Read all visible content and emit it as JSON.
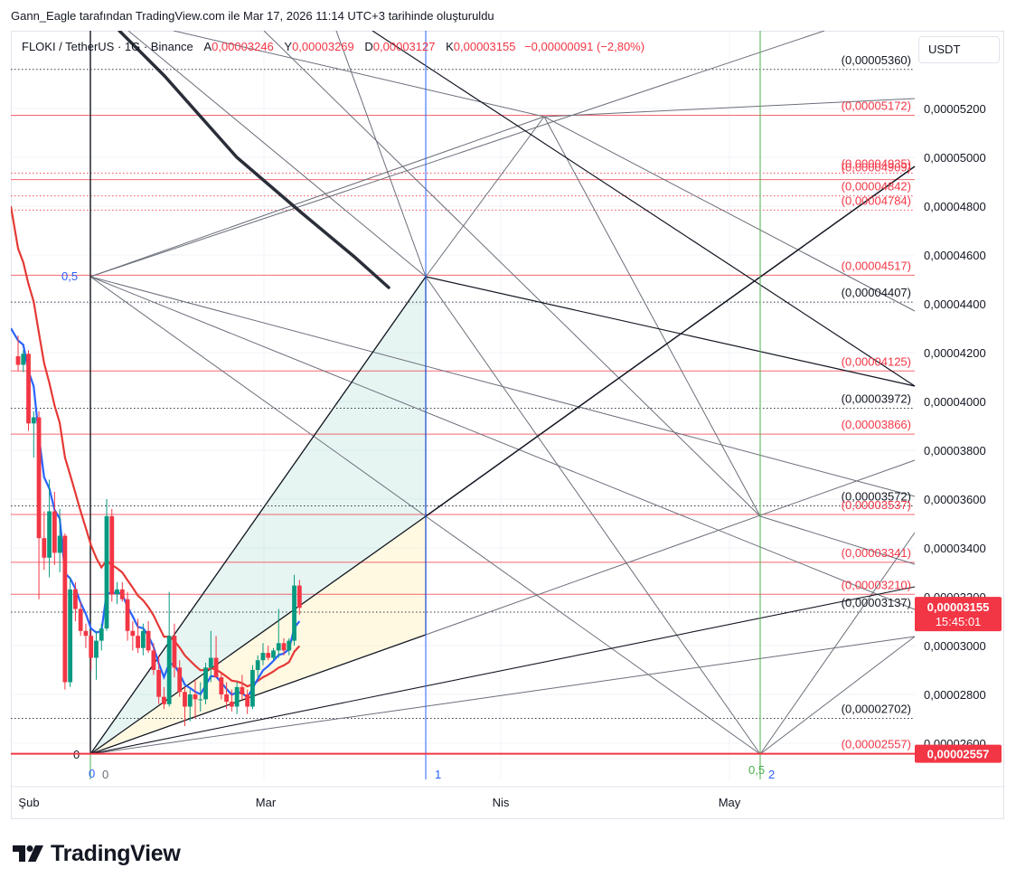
{
  "caption": "Gann_Eagle tarafından TradingView.com ile Mar 17, 2026 11:14 UTC+3 tarihinde oluşturuldu",
  "legend": {
    "symbol": "FLOKI / TetherUS · 1G · Binance",
    "open_label": "A",
    "open": "0,00003246",
    "high_label": "Y",
    "high": "0,00003269",
    "low_label": "D",
    "low": "0,00003127",
    "close_label": "K",
    "close": "0,00003155",
    "change": "−0,00000091 (−2,80%)"
  },
  "currency": "USDT",
  "logo_text": "TradingView",
  "colors": {
    "up": "#089981",
    "down": "#f23645",
    "ema_fast": "#2962ff",
    "ema_slow": "#e53935",
    "level_red": "#f23645",
    "level_black": "#131722",
    "fib_time_blue": "#2962ff",
    "fib_time_green": "#4caf50"
  },
  "chart_data": {
    "type": "candlestick",
    "x_ticks": [
      "Şub",
      "Mar",
      "Nis",
      "May"
    ],
    "y_ticks": [
      "0,00005200",
      "0,00005000",
      "0,00004800",
      "0,00004600",
      "0,00004400",
      "0,00004200",
      "0,00004000",
      "0,00003800",
      "0,00003600",
      "0,00003400",
      "0,00003200",
      "0,00003000",
      "0,00002800",
      "0,00002600"
    ],
    "y_range": [
      2.54e-05,
      5.5e-05
    ],
    "last_price": {
      "value": "0,00003155",
      "countdown": "15:45:01"
    },
    "low_price": {
      "value": "0,00002557"
    },
    "levels": [
      {
        "value": 5.36e-05,
        "label": "(0,00005360)",
        "color": "black",
        "style": "dotted"
      },
      {
        "value": 5.172e-05,
        "label": "(0,00005172)",
        "color": "red",
        "style": "solid"
      },
      {
        "value": 4.935e-05,
        "label": "(0,00004935)",
        "color": "red",
        "style": "dotted"
      },
      {
        "value": 4.909e-05,
        "label": "(0,00004909)",
        "color": "red",
        "style": "solid"
      },
      {
        "value": 4.842e-05,
        "label": "(0,00004842)",
        "color": "red",
        "style": "dotted"
      },
      {
        "value": 4.784e-05,
        "label": "(0,00004784)",
        "color": "red",
        "style": "dotted"
      },
      {
        "value": 4.517e-05,
        "label": "(0,00004517)",
        "color": "red",
        "style": "solid"
      },
      {
        "value": 4.407e-05,
        "label": "(0,00004407)",
        "color": "black",
        "style": "dotted"
      },
      {
        "value": 4.125e-05,
        "label": "(0,00004125)",
        "color": "red",
        "style": "solid"
      },
      {
        "value": 3.972e-05,
        "label": "(0,00003972)",
        "color": "black",
        "style": "dotted"
      },
      {
        "value": 3.866e-05,
        "label": "(0,00003866)",
        "color": "red",
        "style": "solid"
      },
      {
        "value": 3.572e-05,
        "label": "(0,00003572)",
        "color": "black",
        "style": "dotted"
      },
      {
        "value": 3.537e-05,
        "label": "(0,00003537)",
        "color": "red",
        "style": "solid"
      },
      {
        "value": 3.341e-05,
        "label": "(0,00003341)",
        "color": "red",
        "style": "solid"
      },
      {
        "value": 3.21e-05,
        "label": "(0,00003210)",
        "color": "red",
        "style": "solid"
      },
      {
        "value": 3.137e-05,
        "label": "(0,00003137)",
        "color": "black",
        "style": "dotted"
      },
      {
        "value": 2.702e-05,
        "label": "(0,00002702)",
        "color": "black",
        "style": "dotted"
      },
      {
        "value": 2.557e-05,
        "label": "(0,00002557)",
        "color": "red",
        "style": "solid"
      }
    ],
    "fib_time_labels": [
      {
        "text": "0",
        "color": "blue"
      },
      {
        "text": "0",
        "color": "black"
      },
      {
        "text": "1",
        "color": "blue"
      },
      {
        "text": "0,5",
        "color": "green"
      },
      {
        "text": "2",
        "color": "blue"
      }
    ],
    "fib_price_labels": [
      {
        "text": "0,5",
        "color": "blue"
      },
      {
        "text": "0",
        "color": "black"
      }
    ],
    "candles": [
      {
        "o": 4.185e-05,
        "h": 4.27e-05,
        "l": 4.125e-05,
        "c": 4.15e-05
      },
      {
        "o": 4.15e-05,
        "h": 4.21e-05,
        "l": 4.12e-05,
        "c": 4.195e-05
      },
      {
        "o": 4.195e-05,
        "h": 4.21e-05,
        "l": 3.88e-05,
        "c": 3.91e-05
      },
      {
        "o": 3.91e-05,
        "h": 3.96e-05,
        "l": 3.77e-05,
        "c": 3.935e-05
      },
      {
        "o": 3.935e-05,
        "h": 3.96e-05,
        "l": 3.19e-05,
        "c": 3.44e-05
      },
      {
        "o": 3.44e-05,
        "h": 3.55e-05,
        "l": 3.31e-05,
        "c": 3.36e-05
      },
      {
        "o": 3.36e-05,
        "h": 3.68e-05,
        "l": 3.28e-05,
        "c": 3.55e-05
      },
      {
        "o": 3.55e-05,
        "h": 3.63e-05,
        "l": 3.33e-05,
        "c": 3.38e-05
      },
      {
        "o": 3.38e-05,
        "h": 3.56e-05,
        "l": 3.3e-05,
        "c": 3.45e-05
      },
      {
        "o": 3.45e-05,
        "h": 3.46e-05,
        "l": 2.82e-05,
        "c": 2.85e-05
      },
      {
        "o": 2.85e-05,
        "h": 3.28e-05,
        "l": 2.83e-05,
        "c": 3.23e-05
      },
      {
        "o": 3.23e-05,
        "h": 3.26e-05,
        "l": 3.1e-05,
        "c": 3.15e-05
      },
      {
        "o": 3.15e-05,
        "h": 3.18e-05,
        "l": 3.04e-05,
        "c": 3.06e-05
      },
      {
        "o": 3.06e-05,
        "h": 3.09e-05,
        "l": 2.99e-05,
        "c": 3.04e-05
      },
      {
        "o": 3.04e-05,
        "h": 3.06e-05,
        "l": 2.9e-05,
        "c": 2.95e-05
      },
      {
        "o": 2.95e-05,
        "h": 3.06e-05,
        "l": 2.86e-05,
        "c": 3.02e-05
      },
      {
        "o": 3.02e-05,
        "h": 3.09e-05,
        "l": 2.98e-05,
        "c": 3.07e-05
      },
      {
        "o": 3.07e-05,
        "h": 3.6e-05,
        "l": 3.06e-05,
        "c": 3.53e-05
      },
      {
        "o": 3.53e-05,
        "h": 3.56e-05,
        "l": 3.18e-05,
        "c": 3.21e-05
      },
      {
        "o": 3.21e-05,
        "h": 3.26e-05,
        "l": 3.17e-05,
        "c": 3.23e-05
      },
      {
        "o": 3.23e-05,
        "h": 3.26e-05,
        "l": 3.18e-05,
        "c": 3.19e-05
      },
      {
        "o": 3.19e-05,
        "h": 3.22e-05,
        "l": 3.02e-05,
        "c": 3.06e-05
      },
      {
        "o": 3.06e-05,
        "h": 3.1e-05,
        "l": 2.98e-05,
        "c": 3.04e-05
      },
      {
        "o": 3.04e-05,
        "h": 3.11e-05,
        "l": 2.97e-05,
        "c": 2.99e-05
      },
      {
        "o": 2.99e-05,
        "h": 3.09e-05,
        "l": 2.96e-05,
        "c": 3.06e-05
      },
      {
        "o": 3.06e-05,
        "h": 3.1e-05,
        "l": 2.97e-05,
        "c": 2.98e-05
      },
      {
        "o": 2.98e-05,
        "h": 3.01e-05,
        "l": 2.88e-05,
        "c": 2.9e-05
      },
      {
        "o": 2.9e-05,
        "h": 2.96e-05,
        "l": 2.76e-05,
        "c": 2.79e-05
      },
      {
        "o": 2.79e-05,
        "h": 2.83e-05,
        "l": 2.74e-05,
        "c": 2.76e-05
      },
      {
        "o": 2.76e-05,
        "h": 3.22e-05,
        "l": 2.75e-05,
        "c": 3.04e-05
      },
      {
        "o": 3.04e-05,
        "h": 3.09e-05,
        "l": 2.87e-05,
        "c": 2.91e-05
      },
      {
        "o": 2.91e-05,
        "h": 2.94e-05,
        "l": 2.79e-05,
        "c": 2.81e-05
      },
      {
        "o": 2.81e-05,
        "h": 2.83e-05,
        "l": 2.67e-05,
        "c": 2.75e-05
      },
      {
        "o": 2.75e-05,
        "h": 2.82e-05,
        "l": 2.69e-05,
        "c": 2.8e-05
      },
      {
        "o": 2.8e-05,
        "h": 2.86e-05,
        "l": 2.7e-05,
        "c": 2.78e-05
      },
      {
        "o": 2.78e-05,
        "h": 2.85e-05,
        "l": 2.73e-05,
        "c": 2.78e-05
      },
      {
        "o": 2.78e-05,
        "h": 2.93e-05,
        "l": 2.76e-05,
        "c": 2.91e-05
      },
      {
        "o": 2.91e-05,
        "h": 3.06e-05,
        "l": 2.85e-05,
        "c": 2.95e-05
      },
      {
        "o": 2.95e-05,
        "h": 3.04e-05,
        "l": 2.89e-05,
        "c": 2.87e-05
      },
      {
        "o": 2.87e-05,
        "h": 2.89e-05,
        "l": 2.78e-05,
        "c": 2.8e-05
      },
      {
        "o": 2.8e-05,
        "h": 2.85e-05,
        "l": 2.74e-05,
        "c": 2.77e-05
      },
      {
        "o": 2.77e-05,
        "h": 2.82e-05,
        "l": 2.73e-05,
        "c": 2.75e-05
      },
      {
        "o": 2.75e-05,
        "h": 2.85e-05,
        "l": 2.72e-05,
        "c": 2.83e-05
      },
      {
        "o": 2.83e-05,
        "h": 2.88e-05,
        "l": 2.78e-05,
        "c": 2.8e-05
      },
      {
        "o": 2.8e-05,
        "h": 2.82e-05,
        "l": 2.72e-05,
        "c": 2.75e-05
      },
      {
        "o": 2.75e-05,
        "h": 2.92e-05,
        "l": 2.74e-05,
        "c": 2.9e-05
      },
      {
        "o": 2.9e-05,
        "h": 2.96e-05,
        "l": 2.87e-05,
        "c": 2.94e-05
      },
      {
        "o": 2.94e-05,
        "h": 3.01e-05,
        "l": 2.92e-05,
        "c": 2.97e-05
      },
      {
        "o": 2.97e-05,
        "h": 3e-05,
        "l": 2.94e-05,
        "c": 2.95e-05
      },
      {
        "o": 2.95e-05,
        "h": 2.99e-05,
        "l": 2.94e-05,
        "c": 2.98e-05
      },
      {
        "o": 2.98e-05,
        "h": 3.15e-05,
        "l": 2.95e-05,
        "c": 3.01e-05
      },
      {
        "o": 3.01e-05,
        "h": 3.03e-05,
        "l": 2.96e-05,
        "c": 2.98e-05
      },
      {
        "o": 2.98e-05,
        "h": 3.03e-05,
        "l": 2.96e-05,
        "c": 3.02e-05
      },
      {
        "o": 3.02e-05,
        "h": 3.29e-05,
        "l": 3e-05,
        "c": 3.246e-05
      },
      {
        "o": 3.246e-05,
        "h": 3.269e-05,
        "l": 3.127e-05,
        "c": 3.155e-05
      }
    ]
  }
}
